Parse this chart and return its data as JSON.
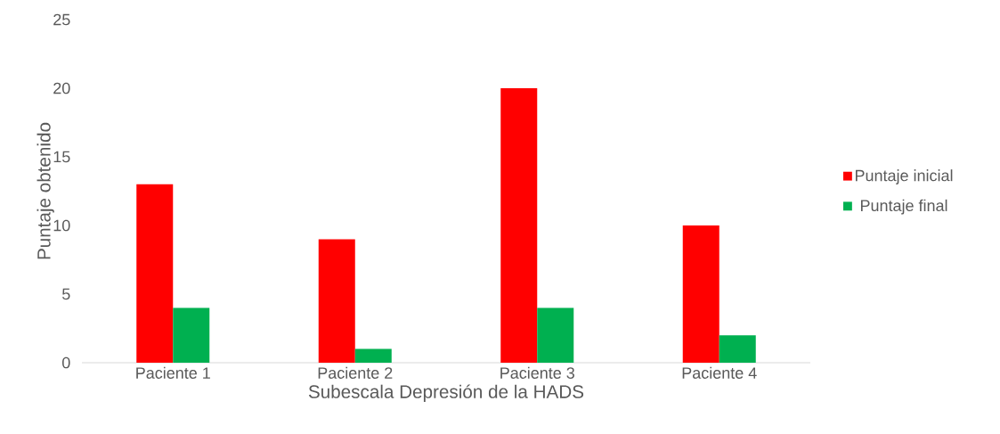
{
  "chart_data": {
    "type": "bar",
    "xlabel": "Subescala Depresión de la HADS",
    "ylabel": "Puntaje obtenido",
    "categories": [
      "Paciente 1",
      "Paciente 2",
      "Paciente 3",
      "Paciente 4"
    ],
    "series": [
      {
        "name": "Puntaje inicial",
        "color": "#ff0000",
        "values": [
          13,
          9,
          20,
          10
        ]
      },
      {
        "name": "Puntaje final",
        "color": "#00b050",
        "values": [
          4,
          1,
          4,
          2
        ]
      }
    ],
    "ylim": [
      0,
      25
    ],
    "yticks": [
      0,
      5,
      10,
      15,
      20,
      25
    ],
    "legend": "right"
  }
}
